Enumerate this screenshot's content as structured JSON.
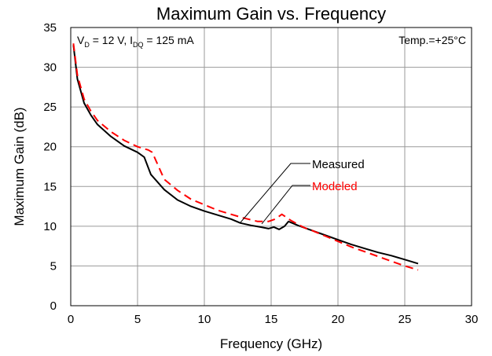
{
  "chart_data": {
    "type": "line",
    "title": "Maximum Gain vs. Frequency",
    "xlabel": "Frequency (GHz)",
    "ylabel": "Maximum Gain (dB)",
    "xlim": [
      0,
      30
    ],
    "ylim": [
      0,
      35
    ],
    "xticks": [
      0,
      5,
      10,
      15,
      20,
      25,
      30
    ],
    "yticks": [
      0,
      5,
      10,
      15,
      20,
      25,
      30,
      35
    ],
    "grid": true,
    "annotation_conditions": {
      "vd_symbol": "V",
      "vd_sub": "D",
      "vd_value": " = 12 V, ",
      "idq_symbol": "I",
      "idq_sub": "DQ",
      "idq_value": " = 125 mA"
    },
    "annotation_temp": "Temp.=+25°C",
    "series": [
      {
        "name": "Measured",
        "color": "#000000",
        "dash": "solid",
        "x": [
          0.2,
          0.5,
          1.0,
          1.5,
          2.0,
          3.0,
          4.0,
          5.0,
          5.5,
          6.0,
          7.0,
          8.0,
          9.0,
          10.0,
          11.0,
          12.0,
          12.7,
          13.5,
          14.2,
          14.8,
          15.2,
          15.6,
          16.0,
          16.3,
          17.0,
          18.0,
          19.0,
          20.0,
          21.0,
          22.0,
          23.0,
          24.0,
          25.0,
          26.0
        ],
        "values": [
          32.8,
          28.5,
          25.5,
          24.0,
          22.8,
          21.3,
          20.1,
          19.3,
          18.7,
          16.5,
          14.6,
          13.3,
          12.5,
          11.9,
          11.4,
          10.9,
          10.4,
          10.1,
          9.9,
          9.7,
          9.9,
          9.6,
          10.0,
          10.6,
          10.1,
          9.5,
          8.9,
          8.3,
          7.7,
          7.2,
          6.7,
          6.3,
          5.8,
          5.3
        ]
      },
      {
        "name": "Modeled",
        "color": "#ff0000",
        "dash": "dashed",
        "x": [
          0.2,
          0.5,
          1.0,
          1.5,
          2.0,
          3.0,
          4.0,
          5.0,
          5.8,
          6.1,
          7.0,
          8.0,
          9.0,
          10.0,
          11.0,
          12.0,
          13.0,
          14.0,
          14.8,
          15.3,
          15.8,
          16.5,
          17.5,
          18.0,
          19.0,
          20.0,
          21.0,
          22.0,
          23.0,
          24.0,
          25.0,
          26.0
        ],
        "values": [
          33.0,
          29.0,
          26.0,
          24.5,
          23.3,
          21.9,
          20.8,
          20.0,
          19.6,
          19.3,
          15.9,
          14.5,
          13.4,
          12.7,
          12.0,
          11.5,
          11.0,
          10.6,
          10.6,
          10.9,
          11.5,
          10.7,
          9.8,
          9.5,
          8.8,
          8.1,
          7.4,
          6.8,
          6.2,
          5.6,
          5.0,
          4.5
        ]
      }
    ],
    "legend": "inline callouts"
  }
}
